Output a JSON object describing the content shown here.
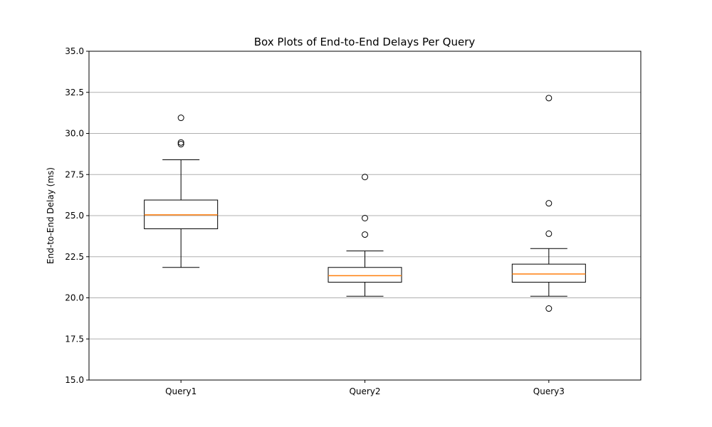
{
  "chart_data": {
    "type": "box",
    "title": "Box Plots of End-to-End Delays Per Query",
    "xlabel": "",
    "ylabel": "End-to-End Delay (ms)",
    "ylim": [
      15.0,
      35.0
    ],
    "yticks": [
      "15.0",
      "17.5",
      "20.0",
      "22.5",
      "25.0",
      "27.5",
      "30.0",
      "32.5",
      "35.0"
    ],
    "grid": "y-axis major",
    "categories": [
      "Query1",
      "Query2",
      "Query3"
    ],
    "boxes": [
      {
        "name": "Query1",
        "whisker_low": 21.85,
        "q1": 24.2,
        "median": 25.05,
        "q3": 25.95,
        "whisker_high": 28.4,
        "outliers": [
          30.95,
          29.45,
          29.35
        ]
      },
      {
        "name": "Query2",
        "whisker_low": 20.1,
        "q1": 20.95,
        "median": 21.35,
        "q3": 21.85,
        "whisker_high": 22.85,
        "outliers": [
          27.35,
          24.85,
          23.85
        ]
      },
      {
        "name": "Query3",
        "whisker_low": 20.1,
        "q1": 20.95,
        "median": 21.45,
        "q3": 22.05,
        "whisker_high": 23.0,
        "outliers": [
          32.15,
          25.75,
          23.9,
          19.35
        ]
      }
    ],
    "colors": {
      "box": "#000000",
      "median": "#ff7f0e",
      "grid": "#b0b0b0"
    }
  }
}
